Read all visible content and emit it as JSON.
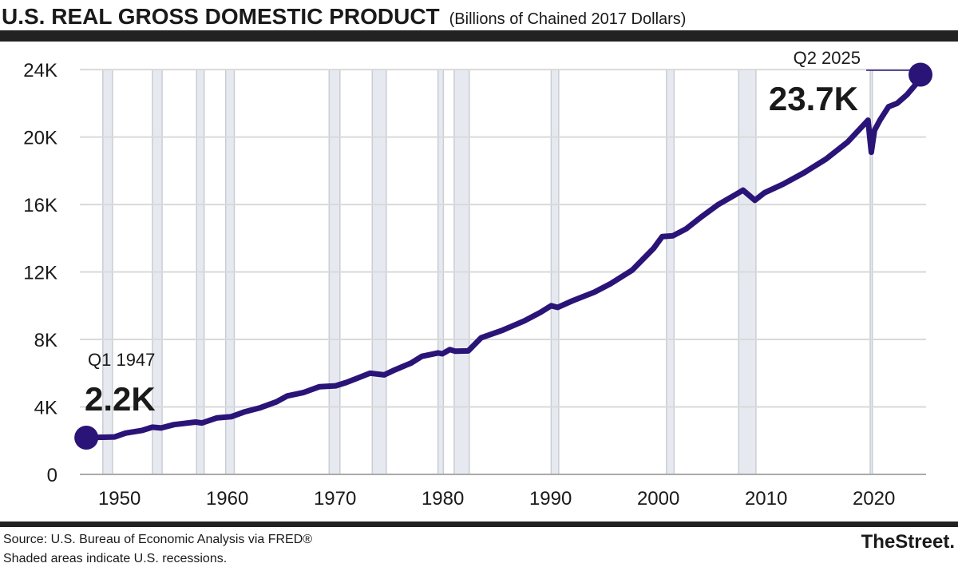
{
  "title": "U.S. REAL GROSS DOMESTIC PRODUCT",
  "subtitle": "(Billions of Chained 2017 Dollars)",
  "footer": {
    "source": "Source: U.S. Bureau of Economic Analysis via FRED®",
    "note": "Shaded areas indicate U.S. recessions.",
    "logo": "TheStreet."
  },
  "colors": {
    "line": "#2a1478",
    "recession": "#e6eaf0",
    "grid": "#d9d9d9",
    "bar": "#222222"
  },
  "chart_data": {
    "type": "line",
    "title": "U.S. REAL GROSS DOMESTIC PRODUCT",
    "subtitle": "(Billions of Chained 2017 Dollars)",
    "xlabel": "",
    "ylabel": "",
    "xlim": [
      1947,
      2025.5
    ],
    "ylim": [
      0,
      24000
    ],
    "grid": true,
    "y_ticks": [
      {
        "v": 0,
        "label": "0"
      },
      {
        "v": 4000,
        "label": "4K"
      },
      {
        "v": 8000,
        "label": "8K"
      },
      {
        "v": 12000,
        "label": "12K"
      },
      {
        "v": 16000,
        "label": "16K"
      },
      {
        "v": 20000,
        "label": "20K"
      },
      {
        "v": 24000,
        "label": "24K"
      }
    ],
    "x_ticks": [
      {
        "v": 1950,
        "label": "1950"
      },
      {
        "v": 1960,
        "label": "1960"
      },
      {
        "v": 1970,
        "label": "1970"
      },
      {
        "v": 1980,
        "label": "1980"
      },
      {
        "v": 1990,
        "label": "1990"
      },
      {
        "v": 2000,
        "label": "2000"
      },
      {
        "v": 2010,
        "label": "2010"
      },
      {
        "v": 2020,
        "label": "2020"
      }
    ],
    "recessions": [
      [
        1948.9,
        1949.8
      ],
      [
        1953.5,
        1954.4
      ],
      [
        1957.6,
        1958.3
      ],
      [
        1960.3,
        1961.1
      ],
      [
        1969.9,
        1970.9
      ],
      [
        1973.9,
        1975.2
      ],
      [
        1980.0,
        1980.5
      ],
      [
        1981.5,
        1982.9
      ],
      [
        1990.5,
        1991.2
      ],
      [
        2001.2,
        2001.9
      ],
      [
        2007.9,
        2009.5
      ],
      [
        2020.1,
        2020.3
      ]
    ],
    "series": [
      {
        "x": [
          1947,
          1949,
          1950,
          1951,
          1952.5,
          1953.5,
          1954.3,
          1955.5,
          1957.5,
          1958.1,
          1959.5,
          1960.8,
          1962,
          1963.5,
          1965,
          1966,
          1967.5,
          1969,
          1970.5,
          1971.5,
          1972.5,
          1973.7,
          1975,
          1976,
          1977.5,
          1978.5,
          1980,
          1980.4,
          1981.1,
          1981.6,
          1982.8,
          1984,
          1986,
          1988,
          1989.5,
          1990.5,
          1991.1,
          1992.5,
          1994.5,
          1996,
          1998,
          2000,
          2000.8,
          2001.8,
          2003,
          2004.5,
          2006,
          2007.5,
          2008.3,
          2009.4,
          2010.3,
          2012,
          2014,
          2016,
          2018,
          2019.9,
          2020.2,
          2020.5,
          2021,
          2021.8,
          2022.6,
          2023.5,
          2024.3,
          2025.25
        ],
        "y": [
          2180,
          2200,
          2220,
          2450,
          2600,
          2800,
          2750,
          2950,
          3100,
          3050,
          3350,
          3420,
          3700,
          3950,
          4300,
          4650,
          4850,
          5200,
          5250,
          5450,
          5700,
          6000,
          5900,
          6200,
          6600,
          7000,
          7200,
          7150,
          7400,
          7300,
          7320,
          8100,
          8550,
          9100,
          9600,
          10000,
          9900,
          10300,
          10800,
          11300,
          12100,
          13400,
          14100,
          14150,
          14550,
          15300,
          16000,
          16550,
          16850,
          16250,
          16700,
          17200,
          17900,
          18700,
          19700,
          21000,
          19100,
          20400,
          21000,
          21800,
          22000,
          22500,
          23100,
          23700
        ]
      }
    ],
    "annotations": [
      {
        "period": "Q1 1947",
        "value_label": "2.2K",
        "x": 1947,
        "y": 2180
      },
      {
        "period": "Q2 2025",
        "value_label": "23.7K",
        "x": 2025.25,
        "y": 23700
      }
    ]
  }
}
